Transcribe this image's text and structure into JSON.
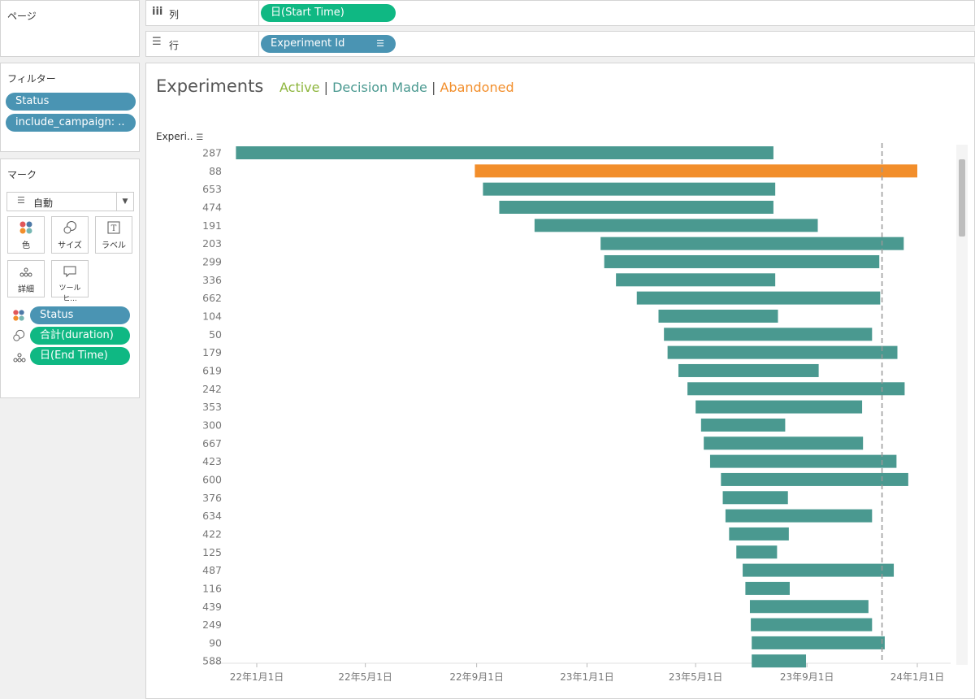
{
  "pages_panel": {
    "title": "ページ"
  },
  "filters_panel": {
    "title": "フィルター",
    "items": [
      "Status",
      "include_campaign: .."
    ]
  },
  "marks_panel": {
    "title": "マーク",
    "mark_type": "自動",
    "cards": {
      "color": "色",
      "size": "サイズ",
      "label": "ラベル",
      "detail": "詳細",
      "tooltip": "ツールヒ..."
    },
    "fields": [
      {
        "label": "Status",
        "kind": "color"
      },
      {
        "label": "合計(duration)",
        "kind": "size"
      },
      {
        "label": "日(End Time)",
        "kind": "detail"
      }
    ]
  },
  "shelves": {
    "columns": {
      "label": "列",
      "pill": "日(Start Time)"
    },
    "rows": {
      "label": "行",
      "pill": "Experiment Id"
    }
  },
  "colors": {
    "active": "#8db53c",
    "decision": "#4a9990",
    "abandoned": "#f28e2b",
    "pill_teal": "#4a94b3",
    "pill_green": "#0fb883"
  },
  "chart_data": {
    "type": "bar",
    "orientation": "horizontal-gantt",
    "title": "Experiments",
    "legend_words": [
      "Active",
      "Decision Made",
      "Abandoned"
    ],
    "legend_sep": "|",
    "row_header": "Experi..",
    "x_ticks": [
      "22年1月1日",
      "22年5月1日",
      "22年9月1日",
      "23年1月1日",
      "23年5月1日",
      "23年9月1日",
      "24年1月1日"
    ],
    "x_tick_dates": [
      "2022-01-01",
      "2022-05-01",
      "2022-09-01",
      "2023-01-01",
      "2023-05-01",
      "2023-09-01",
      "2024-01-01"
    ],
    "reference_date": "2023-11-23",
    "bars": [
      {
        "id": "287",
        "start": "2021-12-09",
        "end": "2023-07-26",
        "status": "Decision Made"
      },
      {
        "id": "88",
        "start": "2022-08-30",
        "end": "2024-01-01",
        "status": "Abandoned"
      },
      {
        "id": "653",
        "start": "2022-09-08",
        "end": "2023-07-28",
        "status": "Decision Made"
      },
      {
        "id": "474",
        "start": "2022-09-26",
        "end": "2023-07-26",
        "status": "Decision Made"
      },
      {
        "id": "191",
        "start": "2022-11-04",
        "end": "2023-09-13",
        "status": "Decision Made"
      },
      {
        "id": "203",
        "start": "2023-01-16",
        "end": "2023-12-17",
        "status": "Decision Made"
      },
      {
        "id": "299",
        "start": "2023-01-20",
        "end": "2023-11-20",
        "status": "Decision Made"
      },
      {
        "id": "336",
        "start": "2023-02-02",
        "end": "2023-07-28",
        "status": "Decision Made"
      },
      {
        "id": "662",
        "start": "2023-02-25",
        "end": "2023-11-21",
        "status": "Decision Made"
      },
      {
        "id": "104",
        "start": "2023-03-21",
        "end": "2023-07-31",
        "status": "Decision Made"
      },
      {
        "id": "50",
        "start": "2023-03-27",
        "end": "2023-11-12",
        "status": "Decision Made"
      },
      {
        "id": "179",
        "start": "2023-03-31",
        "end": "2023-12-10",
        "status": "Decision Made"
      },
      {
        "id": "619",
        "start": "2023-04-12",
        "end": "2023-09-14",
        "status": "Decision Made"
      },
      {
        "id": "242",
        "start": "2023-04-22",
        "end": "2023-12-18",
        "status": "Decision Made"
      },
      {
        "id": "353",
        "start": "2023-05-01",
        "end": "2023-11-01",
        "status": "Decision Made"
      },
      {
        "id": "300",
        "start": "2023-05-07",
        "end": "2023-08-08",
        "status": "Decision Made"
      },
      {
        "id": "667",
        "start": "2023-05-10",
        "end": "2023-11-02",
        "status": "Decision Made"
      },
      {
        "id": "423",
        "start": "2023-05-17",
        "end": "2023-12-09",
        "status": "Decision Made"
      },
      {
        "id": "600",
        "start": "2023-05-29",
        "end": "2023-12-22",
        "status": "Decision Made"
      },
      {
        "id": "376",
        "start": "2023-05-31",
        "end": "2023-08-11",
        "status": "Decision Made"
      },
      {
        "id": "634",
        "start": "2023-06-03",
        "end": "2023-11-12",
        "status": "Decision Made"
      },
      {
        "id": "422",
        "start": "2023-06-07",
        "end": "2023-08-12",
        "status": "Decision Made"
      },
      {
        "id": "125",
        "start": "2023-06-15",
        "end": "2023-07-30",
        "status": "Decision Made"
      },
      {
        "id": "487",
        "start": "2023-06-22",
        "end": "2023-12-06",
        "status": "Decision Made"
      },
      {
        "id": "116",
        "start": "2023-06-25",
        "end": "2023-08-13",
        "status": "Decision Made"
      },
      {
        "id": "439",
        "start": "2023-06-30",
        "end": "2023-11-08",
        "status": "Decision Made"
      },
      {
        "id": "249",
        "start": "2023-07-01",
        "end": "2023-11-12",
        "status": "Decision Made"
      },
      {
        "id": "90",
        "start": "2023-07-02",
        "end": "2023-11-26",
        "status": "Decision Made"
      },
      {
        "id": "588",
        "start": "2023-07-02",
        "end": "2023-08-31",
        "status": "Decision Made"
      }
    ]
  }
}
